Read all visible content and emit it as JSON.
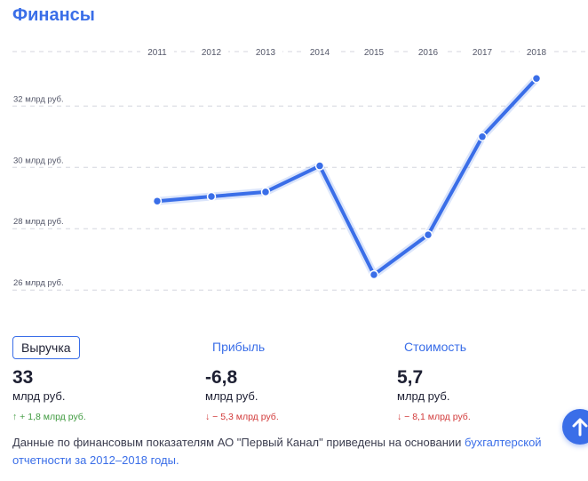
{
  "header": {
    "title": "Финансы"
  },
  "chart_data": {
    "type": "line",
    "x": [
      "2011",
      "2012",
      "2013",
      "2014",
      "2015",
      "2016",
      "2017",
      "2018"
    ],
    "series": [
      {
        "values": [
          28.9,
          29.05,
          29.2,
          30.05,
          26.5,
          27.8,
          31.0,
          32.9
        ]
      }
    ],
    "y_ticks": [
      {
        "value": 32,
        "label": "32 млрд руб."
      },
      {
        "value": 30,
        "label": "30 млрд руб."
      },
      {
        "value": 28,
        "label": "28 млрд руб."
      },
      {
        "value": 26,
        "label": "26 млрд руб."
      }
    ],
    "ylim": [
      25.6,
      34.3
    ],
    "grid": true,
    "line_color": "#3a6ee8"
  },
  "metrics": [
    {
      "tab": "Выручка",
      "value": "33",
      "unit": "млрд руб.",
      "change": "↑ + 1,8 млрд руб.",
      "direction": "up"
    },
    {
      "tab": "Прибыль",
      "value": "-6,8",
      "unit": "млрд руб.",
      "change": "↓ − 5,3 млрд руб.",
      "direction": "down"
    },
    {
      "tab": "Стоимость",
      "value": "5,7",
      "unit": "млрд руб.",
      "change": "↓ − 8,1 млрд руб.",
      "direction": "down"
    }
  ],
  "footnote": {
    "text": "Данные по финансовым показателям АО \"Первый Канал\" приведены на основании ",
    "link": "бухгалтерской отчетности за 2012–2018 годы."
  },
  "colors": {
    "accent": "#3a6ee8",
    "positive": "#3f9a3f",
    "negative": "#d23a3a"
  },
  "icons": {
    "scroll_top": "arrow-up-icon"
  }
}
